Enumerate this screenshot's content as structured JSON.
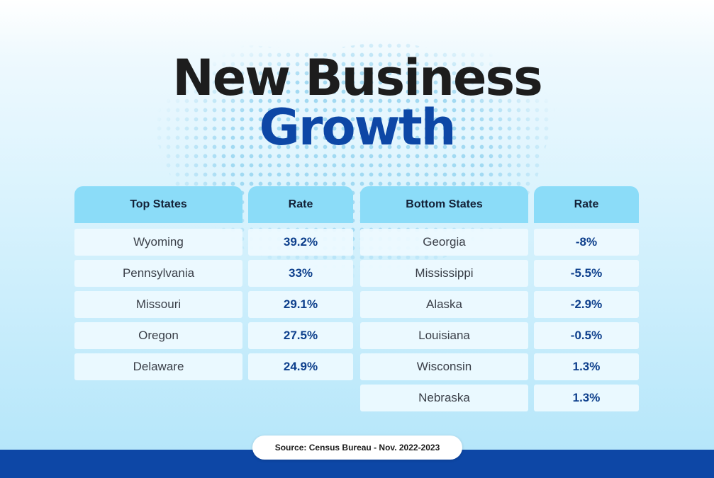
{
  "title": {
    "line1": "New Business",
    "line2": "Growth"
  },
  "colors": {
    "title_dark": "#1d1d1d",
    "title_accent": "#0d47a6",
    "header_bg": "#8bdcf8",
    "rate_text": "#0d3f8c",
    "footer_bar": "#0d47a6"
  },
  "top_table": {
    "headers": [
      "Top States",
      "Rate"
    ],
    "rows": [
      {
        "state": "Wyoming",
        "rate": "39.2%"
      },
      {
        "state": "Pennsylvania",
        "rate": "33%"
      },
      {
        "state": "Missouri",
        "rate": "29.1%"
      },
      {
        "state": "Oregon",
        "rate": "27.5%"
      },
      {
        "state": "Delaware",
        "rate": "24.9%"
      }
    ]
  },
  "bottom_table": {
    "headers": [
      "Bottom States",
      "Rate"
    ],
    "rows": [
      {
        "state": "Georgia",
        "rate": "-8%"
      },
      {
        "state": "Mississippi",
        "rate": "-5.5%"
      },
      {
        "state": "Alaska",
        "rate": "-2.9%"
      },
      {
        "state": "Louisiana",
        "rate": "-0.5%"
      },
      {
        "state": "Wisconsin",
        "rate": "1.3%"
      },
      {
        "state": "Nebraska",
        "rate": "1.3%"
      }
    ]
  },
  "source": "Source: Census Bureau - Nov. 2022-2023",
  "background": {
    "icon": "us-map-dots-icon"
  }
}
